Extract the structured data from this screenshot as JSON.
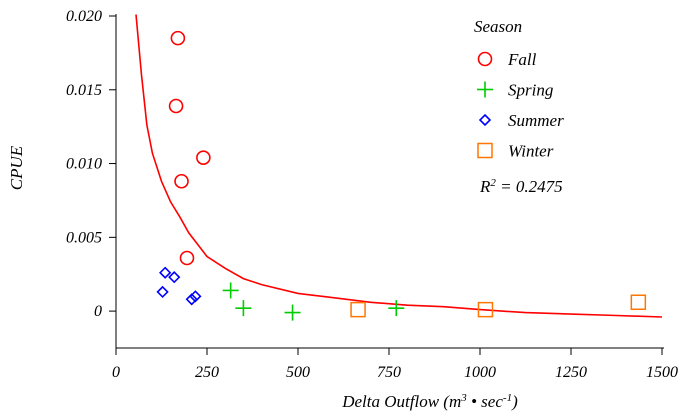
{
  "chart_data": {
    "type": "scatter",
    "title": "",
    "xlabel": "Delta Outflow (m³ • sec⁻¹)",
    "ylabel": "CPUE",
    "xlim": [
      0,
      1500
    ],
    "ylim": [
      -0.0025,
      0.02
    ],
    "x_ticks": [
      0,
      250,
      500,
      750,
      1000,
      1250,
      1500
    ],
    "x_tick_labels": [
      "0",
      "250",
      "500",
      "750",
      "1000",
      "1250",
      "1500"
    ],
    "y_ticks": [
      0,
      0.005,
      0.01,
      0.015,
      0.02
    ],
    "y_tick_labels": [
      "0",
      "0.005",
      "0.010",
      "0.015",
      "0.020"
    ],
    "grid": false,
    "legend": {
      "title": "Season",
      "placement": "top-right"
    },
    "series": [
      {
        "name": "Fall",
        "marker": "circle",
        "color": "#ff0000",
        "points": [
          {
            "x": 170,
            "y": 0.0185
          },
          {
            "x": 165,
            "y": 0.0139
          },
          {
            "x": 240,
            "y": 0.0104
          },
          {
            "x": 180,
            "y": 0.0088
          },
          {
            "x": 195,
            "y": 0.0036
          }
        ]
      },
      {
        "name": "Spring",
        "marker": "plus",
        "color": "#00cc00",
        "points": [
          {
            "x": 315,
            "y": 0.0014
          },
          {
            "x": 350,
            "y": 0.0002
          },
          {
            "x": 485,
            "y": -0.0001
          },
          {
            "x": 770,
            "y": 0.0002
          }
        ]
      },
      {
        "name": "Summer",
        "marker": "diamond",
        "color": "#0000ff",
        "points": [
          {
            "x": 135,
            "y": 0.0026
          },
          {
            "x": 160,
            "y": 0.0023
          },
          {
            "x": 128,
            "y": 0.0013
          },
          {
            "x": 218,
            "y": 0.001
          },
          {
            "x": 208,
            "y": 0.0008
          }
        ]
      },
      {
        "name": "Winter",
        "marker": "square",
        "color": "#ff7700",
        "points": [
          {
            "x": 665,
            "y": 0.0001
          },
          {
            "x": 1015,
            "y": 0.0001
          },
          {
            "x": 1435,
            "y": 0.0006
          }
        ]
      }
    ],
    "fit_curve": {
      "color": "#ff0000",
      "points": [
        {
          "x": 55,
          "y": 0.0201
        },
        {
          "x": 70,
          "y": 0.016
        },
        {
          "x": 85,
          "y": 0.0126
        },
        {
          "x": 100,
          "y": 0.0107
        },
        {
          "x": 125,
          "y": 0.0088
        },
        {
          "x": 150,
          "y": 0.0074
        },
        {
          "x": 175,
          "y": 0.0064
        },
        {
          "x": 200,
          "y": 0.0053
        },
        {
          "x": 250,
          "y": 0.0037
        },
        {
          "x": 300,
          "y": 0.0029
        },
        {
          "x": 350,
          "y": 0.0022
        },
        {
          "x": 400,
          "y": 0.0018
        },
        {
          "x": 500,
          "y": 0.0012
        },
        {
          "x": 600,
          "y": 0.0009
        },
        {
          "x": 700,
          "y": 0.0006
        },
        {
          "x": 800,
          "y": 0.0004
        },
        {
          "x": 900,
          "y": 0.0003
        },
        {
          "x": 1000,
          "y": 0.0001
        },
        {
          "x": 1125,
          "y": -0.0001
        },
        {
          "x": 1250,
          "y": -0.0002
        },
        {
          "x": 1375,
          "y": -0.0003
        },
        {
          "x": 1500,
          "y": -0.0004
        }
      ]
    },
    "annotation": {
      "prefix": "R",
      "superscript": "2",
      "suffix": " = 0.2475"
    }
  }
}
